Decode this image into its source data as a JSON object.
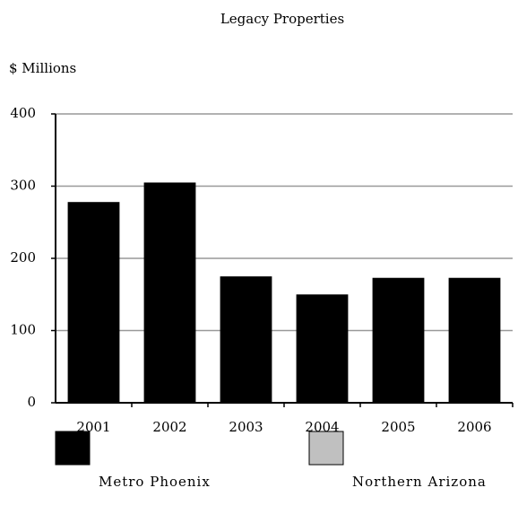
{
  "chart_data": {
    "type": "stacked_bar",
    "title": "Legacy Properties",
    "y_axis_label": "$ Millions",
    "categories": [
      "2001",
      "2002",
      "2003",
      "2004",
      "2005",
      "2006"
    ],
    "series": [
      {
        "name": "Metro Phoenix",
        "color": "#000000",
        "values": [
          278,
          305,
          175,
          150,
          173,
          173
        ]
      },
      {
        "name": "Northern Arizona",
        "color": "#c0c0c0",
        "values": [
          0,
          0,
          0,
          0,
          0,
          0
        ]
      }
    ],
    "ylim": [
      0,
      400
    ],
    "yticks": [
      0,
      100,
      200,
      300,
      400
    ],
    "grid": true
  }
}
